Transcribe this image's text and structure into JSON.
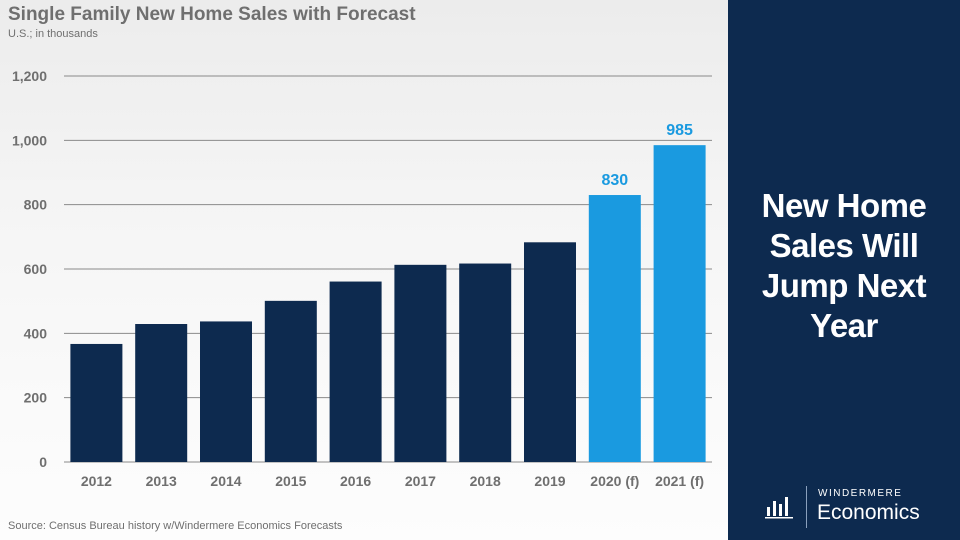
{
  "chart_data": {
    "type": "bar",
    "title": "Single Family New Home Sales with Forecast",
    "subtitle": "U.S.; in thousands",
    "categories": [
      "2012",
      "2013",
      "2014",
      "2015",
      "2016",
      "2017",
      "2018",
      "2019",
      "2020 (f)",
      "2021 (f)"
    ],
    "values": [
      367,
      429,
      437,
      501,
      561,
      613,
      617,
      683,
      830,
      985
    ],
    "forecast": [
      false,
      false,
      false,
      false,
      false,
      false,
      false,
      false,
      true,
      true
    ],
    "value_labels": [
      "",
      "",
      "",
      "",
      "",
      "",
      "",
      "",
      "830",
      "985"
    ],
    "yticks": [
      0,
      200,
      400,
      600,
      800,
      1000,
      1200
    ],
    "ytick_labels": [
      "0",
      "200",
      "400",
      "600",
      "800",
      "1,000",
      "1,200"
    ],
    "ylim": [
      0,
      1200
    ],
    "xlabel": "",
    "ylabel": "",
    "grid": true,
    "source": "Source: Census Bureau history w/Windermere Economics Forecasts",
    "colors": {
      "history": "#0d2a4f",
      "forecast": "#1a9ae0",
      "forecast_label": "#1a9ae0",
      "grid": "#8a8a8a",
      "axis_text": "#6f6f6f"
    }
  },
  "sidebar": {
    "headline": "New Home Sales Will Jump Next Year",
    "background": "#0d2a4f"
  },
  "brand": {
    "name": "WINDERMERE",
    "unit": "Economics",
    "icon": "bar-chart-logo-icon"
  }
}
